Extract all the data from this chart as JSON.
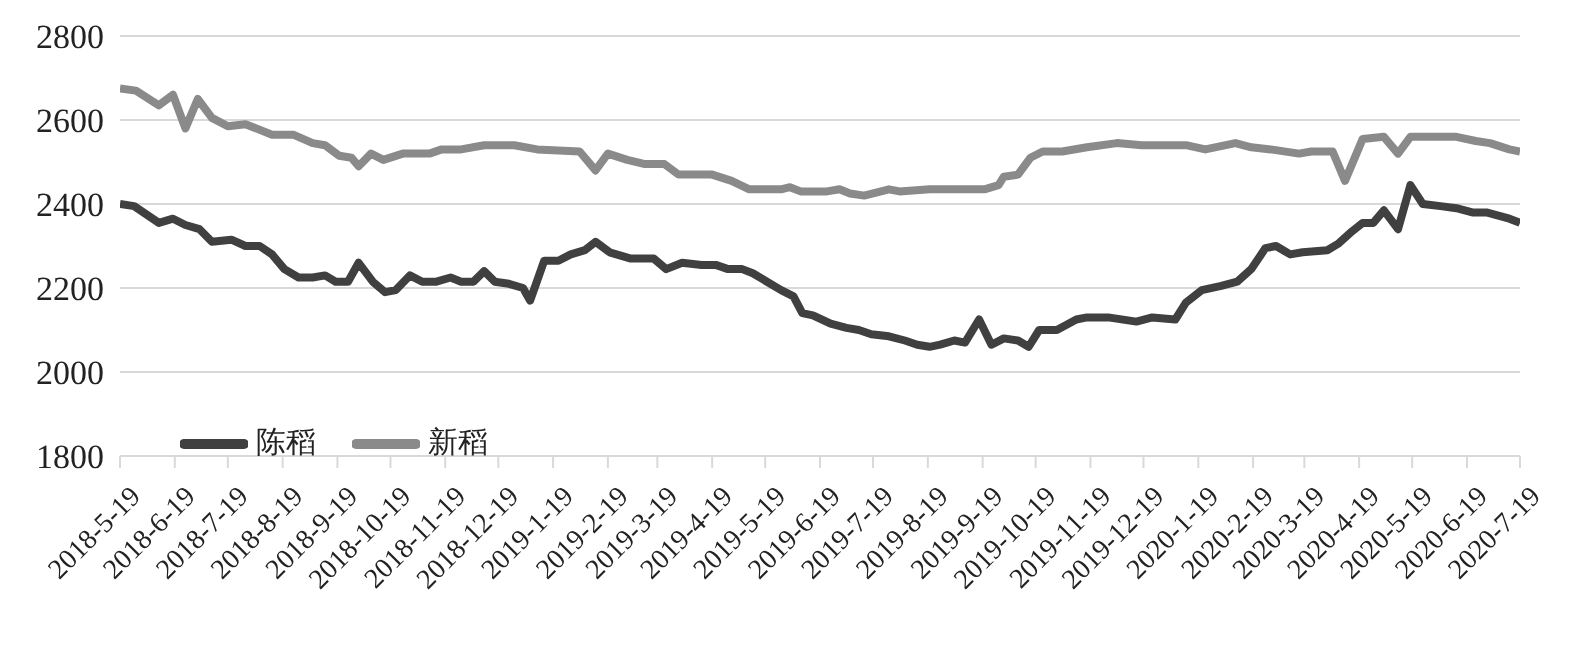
{
  "chart_data": {
    "type": "line",
    "legend": "bottom left",
    "grid": "y",
    "marker": "none",
    "line_style": "solid",
    "ylim": [
      1800,
      2800
    ],
    "yticks": [
      1800,
      2000,
      2200,
      2400,
      2600,
      2800
    ],
    "xlim": [
      "2018-05-19",
      "2020-07-19"
    ],
    "xticks": [
      {
        "value": "2018-05-19",
        "label": "2018-5-19"
      },
      {
        "value": "2018-06-19",
        "label": "2018-6-19"
      },
      {
        "value": "2018-07-19",
        "label": "2018-7-19"
      },
      {
        "value": "2018-08-19",
        "label": "2018-8-19"
      },
      {
        "value": "2018-09-19",
        "label": "2018-9-19"
      },
      {
        "value": "2018-10-19",
        "label": "2018-10-19"
      },
      {
        "value": "2018-11-19",
        "label": "2018-11-19"
      },
      {
        "value": "2018-12-19",
        "label": "2018-12-19"
      },
      {
        "value": "2019-01-19",
        "label": "2019-1-19"
      },
      {
        "value": "2019-02-19",
        "label": "2019-2-19"
      },
      {
        "value": "2019-03-19",
        "label": "2019-3-19"
      },
      {
        "value": "2019-04-19",
        "label": "2019-4-19"
      },
      {
        "value": "2019-05-19",
        "label": "2019-5-19"
      },
      {
        "value": "2019-06-19",
        "label": "2019-6-19"
      },
      {
        "value": "2019-07-19",
        "label": "2019-7-19"
      },
      {
        "value": "2019-08-19",
        "label": "2019-8-19"
      },
      {
        "value": "2019-09-19",
        "label": "2019-9-19"
      },
      {
        "value": "2019-10-19",
        "label": "2019-10-19"
      },
      {
        "value": "2019-11-19",
        "label": "2019-11-19"
      },
      {
        "value": "2019-12-19",
        "label": "2019-12-19"
      },
      {
        "value": "2020-01-19",
        "label": "2020-1-19"
      },
      {
        "value": "2020-02-19",
        "label": "2020-2-19"
      },
      {
        "value": "2020-03-19",
        "label": "2020-3-19"
      },
      {
        "value": "2020-04-19",
        "label": "2020-4-19"
      },
      {
        "value": "2020-05-19",
        "label": "2020-5-19"
      },
      {
        "value": "2020-06-19",
        "label": "2020-6-19"
      },
      {
        "value": "2020-07-19",
        "label": "2020-7-19"
      }
    ],
    "series": [
      {
        "name": "陈稻",
        "color": "#404040",
        "x": [
          "2018-05-19",
          "2018-05-27",
          "2018-06-10",
          "2018-06-18",
          "2018-06-25",
          "2018-07-03",
          "2018-07-10",
          "2018-07-21",
          "2018-07-29",
          "2018-08-06",
          "2018-08-13",
          "2018-08-20",
          "2018-08-28",
          "2018-09-05",
          "2018-09-12",
          "2018-09-18",
          "2018-09-25",
          "2018-10-01",
          "2018-10-09",
          "2018-10-16",
          "2018-10-22",
          "2018-10-30",
          "2018-11-06",
          "2018-11-14",
          "2018-11-22",
          "2018-11-28",
          "2018-12-05",
          "2018-12-11",
          "2018-12-17",
          "2018-12-25",
          "2019-01-02",
          "2019-01-06",
          "2019-01-14",
          "2019-01-22",
          "2019-01-29",
          "2019-02-06",
          "2019-02-12",
          "2019-02-20",
          "2019-03-04",
          "2019-03-17",
          "2019-03-24",
          "2019-04-02",
          "2019-04-13",
          "2019-04-21",
          "2019-04-28",
          "2019-05-06",
          "2019-05-12",
          "2019-05-20",
          "2019-05-28",
          "2019-06-04",
          "2019-06-09",
          "2019-06-15",
          "2019-06-25",
          "2019-07-04",
          "2019-07-11",
          "2019-07-18",
          "2019-07-28",
          "2019-08-06",
          "2019-08-13",
          "2019-08-20",
          "2019-08-26",
          "2019-09-03",
          "2019-09-09",
          "2019-09-17",
          "2019-09-24",
          "2019-10-01",
          "2019-10-09",
          "2019-10-15",
          "2019-10-21",
          "2019-10-31",
          "2019-11-11",
          "2019-11-17",
          "2019-11-29",
          "2019-12-15",
          "2019-12-24",
          "2020-01-06",
          "2020-01-12",
          "2020-01-21",
          "2020-02-01",
          "2020-02-10",
          "2020-02-18",
          "2020-02-26",
          "2020-03-03",
          "2020-03-11",
          "2020-03-18",
          "2020-04-01",
          "2020-04-07",
          "2020-04-15",
          "2020-04-21",
          "2020-04-27",
          "2020-05-03",
          "2020-05-11",
          "2020-05-18",
          "2020-05-25",
          "2020-06-04",
          "2020-06-13",
          "2020-06-22",
          "2020-06-30",
          "2020-07-13",
          "2020-07-19"
        ],
        "values": [
          2400,
          2395,
          2355,
          2365,
          2350,
          2340,
          2310,
          2315,
          2300,
          2300,
          2280,
          2245,
          2225,
          2225,
          2230,
          2215,
          2215,
          2260,
          2215,
          2190,
          2195,
          2230,
          2215,
          2215,
          2225,
          2215,
          2215,
          2240,
          2215,
          2210,
          2200,
          2170,
          2265,
          2265,
          2280,
          2290,
          2310,
          2285,
          2270,
          2270,
          2245,
          2260,
          2255,
          2255,
          2245,
          2245,
          2235,
          2215,
          2195,
          2180,
          2140,
          2135,
          2115,
          2105,
          2100,
          2090,
          2085,
          2075,
          2065,
          2060,
          2065,
          2075,
          2070,
          2125,
          2065,
          2080,
          2075,
          2060,
          2100,
          2100,
          2125,
          2130,
          2130,
          2120,
          2130,
          2125,
          2165,
          2195,
          2205,
          2215,
          2245,
          2295,
          2300,
          2280,
          2285,
          2290,
          2305,
          2335,
          2355,
          2355,
          2385,
          2340,
          2445,
          2400,
          2395,
          2390,
          2380,
          2380,
          2365,
          2355
        ]
      },
      {
        "name": "新稻",
        "color": "#8a8a8a",
        "x": [
          "2018-05-19",
          "2018-05-28",
          "2018-06-10",
          "2018-06-18",
          "2018-06-25",
          "2018-07-02",
          "2018-07-10",
          "2018-07-19",
          "2018-07-29",
          "2018-08-13",
          "2018-08-25",
          "2018-09-05",
          "2018-09-12",
          "2018-09-20",
          "2018-09-27",
          "2018-10-01",
          "2018-10-08",
          "2018-10-15",
          "2018-10-26",
          "2018-11-10",
          "2018-11-17",
          "2018-11-28",
          "2018-12-11",
          "2018-12-28",
          "2019-01-10",
          "2019-02-03",
          "2019-02-12",
          "2019-02-19",
          "2019-03-02",
          "2019-03-12",
          "2019-03-23",
          "2019-03-31",
          "2019-04-19",
          "2019-04-30",
          "2019-05-10",
          "2019-05-28",
          "2019-06-02",
          "2019-06-08",
          "2019-06-23",
          "2019-06-30",
          "2019-07-06",
          "2019-07-14",
          "2019-07-28",
          "2019-08-03",
          "2019-08-20",
          "2019-09-09",
          "2019-09-20",
          "2019-09-28",
          "2019-10-01",
          "2019-10-09",
          "2019-10-16",
          "2019-10-23",
          "2019-11-03",
          "2019-11-17",
          "2019-12-04",
          "2019-12-18",
          "2020-01-12",
          "2020-01-23",
          "2020-02-09",
          "2020-02-18",
          "2020-02-29",
          "2020-03-16",
          "2020-03-23",
          "2020-04-04",
          "2020-04-11",
          "2020-04-21",
          "2020-05-03",
          "2020-05-11",
          "2020-05-18",
          "2020-06-13",
          "2020-06-24",
          "2020-07-02",
          "2020-07-13",
          "2020-07-19"
        ],
        "values": [
          2675,
          2670,
          2635,
          2660,
          2580,
          2650,
          2605,
          2585,
          2590,
          2565,
          2565,
          2545,
          2540,
          2515,
          2510,
          2490,
          2520,
          2505,
          2520,
          2520,
          2530,
          2530,
          2540,
          2540,
          2530,
          2525,
          2480,
          2520,
          2505,
          2495,
          2495,
          2470,
          2470,
          2455,
          2435,
          2435,
          2440,
          2430,
          2430,
          2435,
          2425,
          2420,
          2435,
          2430,
          2435,
          2435,
          2435,
          2445,
          2465,
          2470,
          2510,
          2525,
          2525,
          2535,
          2545,
          2540,
          2540,
          2530,
          2545,
          2535,
          2530,
          2520,
          2525,
          2525,
          2455,
          2555,
          2560,
          2520,
          2560,
          2560,
          2550,
          2545,
          2530,
          2525
        ]
      }
    ]
  }
}
